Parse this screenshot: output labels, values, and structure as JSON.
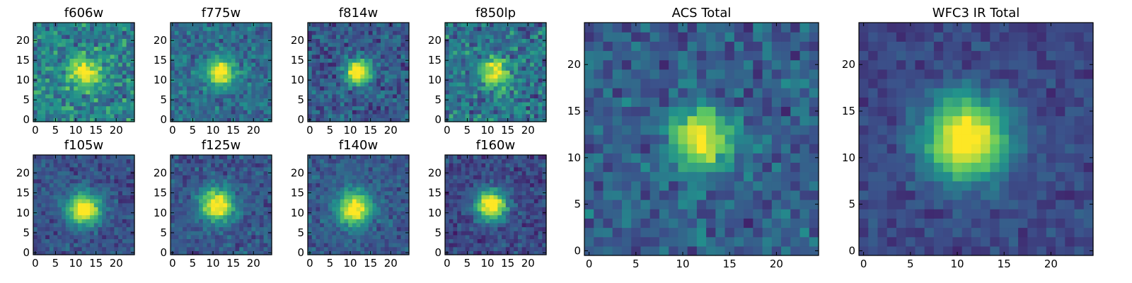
{
  "figure": {
    "colormap": "viridis",
    "colors": {
      "viridis_stops": [
        "#440154",
        "#3b528b",
        "#21918c",
        "#5ec962",
        "#fde725"
      ],
      "frame": "#000000",
      "background": "#ffffff"
    }
  },
  "chart_data": [
    {
      "type": "heatmap",
      "title": "f606w",
      "grid_size": 25,
      "peak": [
        12,
        12
      ],
      "sigma": 2.6,
      "amplitude": 0.45,
      "noise": 0.55,
      "base": 0.45,
      "vrange": [
        0,
        1
      ],
      "xticks": [
        "0",
        "5",
        "10",
        "15",
        "20"
      ],
      "yticks": [
        "0",
        "5",
        "10",
        "15",
        "20"
      ]
    },
    {
      "type": "heatmap",
      "title": "f775w",
      "grid_size": 25,
      "peak": [
        12,
        12
      ],
      "sigma": 2.4,
      "amplitude": 0.6,
      "noise": 0.4,
      "base": 0.35,
      "vrange": [
        0,
        1
      ],
      "xticks": [
        "0",
        "5",
        "10",
        "15",
        "20"
      ],
      "yticks": [
        "0",
        "5",
        "10",
        "15",
        "20"
      ]
    },
    {
      "type": "heatmap",
      "title": "f814w",
      "grid_size": 25,
      "peak": [
        12,
        12
      ],
      "sigma": 2.1,
      "amplitude": 0.7,
      "noise": 0.42,
      "base": 0.28,
      "vrange": [
        0,
        1
      ],
      "xticks": [
        "0",
        "5",
        "10",
        "15",
        "20"
      ],
      "yticks": [
        "0",
        "5",
        "10",
        "15",
        "20"
      ]
    },
    {
      "type": "heatmap",
      "title": "f850lp",
      "grid_size": 25,
      "peak": [
        12,
        12
      ],
      "sigma": 2.5,
      "amplitude": 0.5,
      "noise": 0.55,
      "base": 0.38,
      "vrange": [
        0,
        1
      ],
      "xticks": [
        "0",
        "5",
        "10",
        "15",
        "20"
      ],
      "yticks": [
        "0",
        "5",
        "10",
        "15",
        "20"
      ]
    },
    {
      "type": "heatmap",
      "title": "f105w",
      "grid_size": 25,
      "peak": [
        12,
        11
      ],
      "sigma": 2.8,
      "amplitude": 0.7,
      "noise": 0.3,
      "base": 0.25,
      "vrange": [
        0,
        1
      ],
      "xticks": [
        "0",
        "5",
        "10",
        "15",
        "20"
      ],
      "yticks": [
        "0",
        "5",
        "10",
        "15",
        "20"
      ]
    },
    {
      "type": "heatmap",
      "title": "f125w",
      "grid_size": 25,
      "peak": [
        11,
        12
      ],
      "sigma": 2.8,
      "amplitude": 0.68,
      "noise": 0.32,
      "base": 0.27,
      "vrange": [
        0,
        1
      ],
      "xticks": [
        "0",
        "5",
        "10",
        "15",
        "20"
      ],
      "yticks": [
        "0",
        "5",
        "10",
        "15",
        "20"
      ]
    },
    {
      "type": "heatmap",
      "title": "f140w",
      "grid_size": 25,
      "peak": [
        11,
        11
      ],
      "sigma": 2.8,
      "amplitude": 0.68,
      "noise": 0.3,
      "base": 0.28,
      "vrange": [
        0,
        1
      ],
      "xticks": [
        "0",
        "5",
        "10",
        "15",
        "20"
      ],
      "yticks": [
        "0",
        "5",
        "10",
        "15",
        "20"
      ]
    },
    {
      "type": "heatmap",
      "title": "f160w",
      "grid_size": 25,
      "peak": [
        11,
        12
      ],
      "sigma": 2.6,
      "amplitude": 0.72,
      "noise": 0.32,
      "base": 0.22,
      "vrange": [
        0,
        1
      ],
      "xticks": [
        "0",
        "5",
        "10",
        "15",
        "20"
      ],
      "yticks": [
        "0",
        "5",
        "10",
        "15",
        "20"
      ]
    },
    {
      "type": "heatmap",
      "title": "ACS Total",
      "grid_size": 25,
      "peak": [
        12,
        12
      ],
      "sigma": 2.2,
      "amplitude": 0.62,
      "noise": 0.4,
      "base": 0.3,
      "vrange": [
        0,
        1
      ],
      "xticks": [
        "0",
        "5",
        "10",
        "15",
        "20"
      ],
      "yticks": [
        "0",
        "5",
        "10",
        "15",
        "20"
      ]
    },
    {
      "type": "heatmap",
      "title": "WFC3 IR Total",
      "grid_size": 25,
      "peak": [
        11,
        12
      ],
      "sigma": 3.0,
      "amplitude": 0.72,
      "noise": 0.22,
      "base": 0.22,
      "vrange": [
        0,
        1
      ],
      "xticks": [
        "0",
        "5",
        "10",
        "15",
        "20"
      ],
      "yticks": [
        "0",
        "5",
        "10",
        "15",
        "20"
      ]
    }
  ]
}
